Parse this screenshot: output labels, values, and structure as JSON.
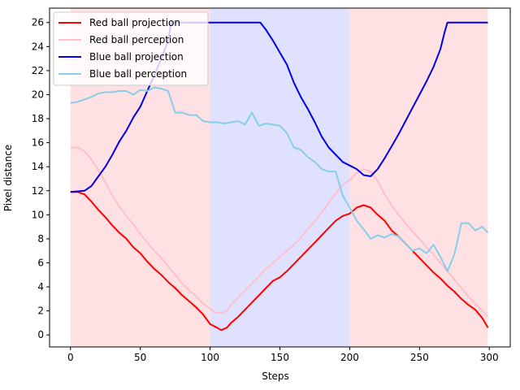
{
  "chart_data": {
    "type": "line",
    "title": "",
    "xlabel": "Steps",
    "ylabel": "Pixel distance",
    "xlim": [
      -15,
      315
    ],
    "ylim": [
      -1,
      27.2
    ],
    "xticks": [
      0,
      50,
      100,
      150,
      200,
      250,
      300
    ],
    "yticks": [
      0,
      2,
      4,
      6,
      8,
      10,
      12,
      14,
      16,
      18,
      20,
      22,
      24,
      26
    ],
    "grid": false,
    "legend_position": "top-left",
    "background_bands": [
      {
        "x0": 0,
        "x1": 100,
        "color": "#ffe0e3"
      },
      {
        "x0": 100,
        "x1": 200,
        "color": "#e0e0ff"
      },
      {
        "x0": 200,
        "x1": 299,
        "color": "#ffe0e3"
      }
    ],
    "series": [
      {
        "name": "Red ball projection",
        "color": "#ff0000",
        "points": [
          [
            0,
            11.9
          ],
          [
            5,
            11.9
          ],
          [
            10,
            11.7
          ],
          [
            15,
            11.1
          ],
          [
            20,
            10.4
          ],
          [
            25,
            9.8
          ],
          [
            30,
            9.1
          ],
          [
            35,
            8.5
          ],
          [
            40,
            8.0
          ],
          [
            45,
            7.3
          ],
          [
            50,
            6.8
          ],
          [
            55,
            6.1
          ],
          [
            60,
            5.5
          ],
          [
            65,
            5.0
          ],
          [
            70,
            4.4
          ],
          [
            75,
            3.9
          ],
          [
            80,
            3.3
          ],
          [
            85,
            2.8
          ],
          [
            90,
            2.3
          ],
          [
            95,
            1.7
          ],
          [
            100,
            0.9
          ],
          [
            105,
            0.6
          ],
          [
            108,
            0.4
          ],
          [
            112,
            0.6
          ],
          [
            115,
            1.0
          ],
          [
            120,
            1.5
          ],
          [
            125,
            2.1
          ],
          [
            130,
            2.7
          ],
          [
            135,
            3.3
          ],
          [
            140,
            3.9
          ],
          [
            145,
            4.5
          ],
          [
            150,
            4.8
          ],
          [
            155,
            5.3
          ],
          [
            160,
            5.9
          ],
          [
            165,
            6.5
          ],
          [
            170,
            7.1
          ],
          [
            175,
            7.7
          ],
          [
            180,
            8.3
          ],
          [
            185,
            8.9
          ],
          [
            190,
            9.5
          ],
          [
            195,
            9.9
          ],
          [
            200,
            10.1
          ],
          [
            205,
            10.6
          ],
          [
            210,
            10.8
          ],
          [
            215,
            10.6
          ],
          [
            220,
            10.0
          ],
          [
            225,
            9.5
          ],
          [
            230,
            8.7
          ],
          [
            235,
            8.2
          ],
          [
            240,
            7.6
          ],
          [
            245,
            7.0
          ],
          [
            250,
            6.4
          ],
          [
            255,
            5.8
          ],
          [
            260,
            5.2
          ],
          [
            265,
            4.7
          ],
          [
            270,
            4.1
          ],
          [
            275,
            3.6
          ],
          [
            280,
            3.0
          ],
          [
            285,
            2.5
          ],
          [
            290,
            2.1
          ],
          [
            295,
            1.4
          ],
          [
            299,
            0.6
          ]
        ]
      },
      {
        "name": "Red ball perception",
        "color": "#ffc0cb",
        "points": [
          [
            0,
            15.6
          ],
          [
            5,
            15.6
          ],
          [
            10,
            15.3
          ],
          [
            15,
            14.6
          ],
          [
            20,
            13.7
          ],
          [
            25,
            12.7
          ],
          [
            30,
            11.6
          ],
          [
            35,
            10.7
          ],
          [
            40,
            9.9
          ],
          [
            45,
            9.2
          ],
          [
            50,
            8.4
          ],
          [
            55,
            7.7
          ],
          [
            60,
            7.0
          ],
          [
            65,
            6.4
          ],
          [
            70,
            5.7
          ],
          [
            75,
            5.0
          ],
          [
            80,
            4.3
          ],
          [
            85,
            3.7
          ],
          [
            90,
            3.2
          ],
          [
            95,
            2.6
          ],
          [
            100,
            2.2
          ],
          [
            103,
            1.9
          ],
          [
            108,
            1.8
          ],
          [
            112,
            2.0
          ],
          [
            115,
            2.5
          ],
          [
            120,
            3.1
          ],
          [
            125,
            3.7
          ],
          [
            130,
            4.3
          ],
          [
            135,
            4.9
          ],
          [
            140,
            5.5
          ],
          [
            145,
            6.0
          ],
          [
            150,
            6.5
          ],
          [
            155,
            7.0
          ],
          [
            160,
            7.5
          ],
          [
            165,
            8.1
          ],
          [
            170,
            8.8
          ],
          [
            175,
            9.5
          ],
          [
            180,
            10.2
          ],
          [
            185,
            11.0
          ],
          [
            190,
            11.8
          ],
          [
            195,
            12.5
          ],
          [
            200,
            12.9
          ],
          [
            205,
            13.5
          ],
          [
            210,
            13.8
          ],
          [
            215,
            13.6
          ],
          [
            220,
            12.8
          ],
          [
            225,
            11.7
          ],
          [
            230,
            10.8
          ],
          [
            235,
            10.0
          ],
          [
            240,
            9.3
          ],
          [
            245,
            8.6
          ],
          [
            250,
            8.0
          ],
          [
            255,
            7.3
          ],
          [
            260,
            6.7
          ],
          [
            265,
            6.0
          ],
          [
            270,
            5.3
          ],
          [
            275,
            4.6
          ],
          [
            280,
            3.9
          ],
          [
            285,
            3.2
          ],
          [
            290,
            2.6
          ],
          [
            295,
            2.0
          ],
          [
            299,
            1.5
          ]
        ]
      },
      {
        "name": "Blue ball projection",
        "color": "#0000ee",
        "points": [
          [
            0,
            11.9
          ],
          [
            10,
            12.0
          ],
          [
            15,
            12.4
          ],
          [
            20,
            13.2
          ],
          [
            25,
            14.0
          ],
          [
            30,
            15.0
          ],
          [
            35,
            16.1
          ],
          [
            40,
            17.0
          ],
          [
            45,
            18.1
          ],
          [
            50,
            19.0
          ],
          [
            55,
            20.3
          ],
          [
            60,
            21.6
          ],
          [
            65,
            23.0
          ],
          [
            70,
            24.5
          ],
          [
            72,
            26.0
          ],
          [
            100,
            26.0
          ],
          [
            136,
            26.0
          ],
          [
            140,
            25.4
          ],
          [
            145,
            24.5
          ],
          [
            150,
            23.5
          ],
          [
            155,
            22.5
          ],
          [
            160,
            21.0
          ],
          [
            165,
            19.8
          ],
          [
            170,
            18.8
          ],
          [
            175,
            17.7
          ],
          [
            180,
            16.5
          ],
          [
            185,
            15.6
          ],
          [
            190,
            15.0
          ],
          [
            195,
            14.4
          ],
          [
            200,
            14.1
          ],
          [
            205,
            13.8
          ],
          [
            210,
            13.3
          ],
          [
            215,
            13.2
          ],
          [
            220,
            13.8
          ],
          [
            225,
            14.7
          ],
          [
            230,
            15.7
          ],
          [
            235,
            16.7
          ],
          [
            240,
            17.8
          ],
          [
            245,
            18.9
          ],
          [
            250,
            20.0
          ],
          [
            255,
            21.1
          ],
          [
            260,
            22.3
          ],
          [
            265,
            23.8
          ],
          [
            268,
            25.2
          ],
          [
            270,
            26.0
          ],
          [
            280,
            26.0
          ],
          [
            299,
            26.0
          ]
        ]
      },
      {
        "name": "Blue ball perception",
        "color": "#87ceeb",
        "points": [
          [
            0,
            19.3
          ],
          [
            5,
            19.4
          ],
          [
            10,
            19.6
          ],
          [
            15,
            19.8
          ],
          [
            20,
            20.1
          ],
          [
            25,
            20.2
          ],
          [
            30,
            20.2
          ],
          [
            35,
            20.3
          ],
          [
            40,
            20.3
          ],
          [
            45,
            20.0
          ],
          [
            50,
            20.4
          ],
          [
            55,
            20.3
          ],
          [
            60,
            20.6
          ],
          [
            65,
            20.5
          ],
          [
            70,
            20.3
          ],
          [
            75,
            18.5
          ],
          [
            80,
            18.5
          ],
          [
            85,
            18.3
          ],
          [
            90,
            18.3
          ],
          [
            95,
            17.8
          ],
          [
            100,
            17.7
          ],
          [
            105,
            17.7
          ],
          [
            110,
            17.6
          ],
          [
            115,
            17.7
          ],
          [
            120,
            17.8
          ],
          [
            125,
            17.5
          ],
          [
            130,
            18.5
          ],
          [
            135,
            17.4
          ],
          [
            140,
            17.6
          ],
          [
            145,
            17.5
          ],
          [
            150,
            17.4
          ],
          [
            155,
            16.8
          ],
          [
            160,
            15.6
          ],
          [
            165,
            15.4
          ],
          [
            170,
            14.8
          ],
          [
            175,
            14.4
          ],
          [
            180,
            13.8
          ],
          [
            185,
            13.6
          ],
          [
            190,
            13.6
          ],
          [
            195,
            11.6
          ],
          [
            200,
            10.6
          ],
          [
            205,
            9.5
          ],
          [
            210,
            8.8
          ],
          [
            215,
            8.0
          ],
          [
            220,
            8.3
          ],
          [
            225,
            8.1
          ],
          [
            230,
            8.4
          ],
          [
            235,
            8.2
          ],
          [
            240,
            7.6
          ],
          [
            245,
            7.0
          ],
          [
            250,
            7.2
          ],
          [
            255,
            6.8
          ],
          [
            260,
            7.5
          ],
          [
            265,
            6.5
          ],
          [
            270,
            5.3
          ],
          [
            275,
            6.7
          ],
          [
            280,
            9.3
          ],
          [
            285,
            9.3
          ],
          [
            290,
            8.7
          ],
          [
            295,
            9.0
          ],
          [
            299,
            8.5
          ]
        ]
      }
    ]
  }
}
